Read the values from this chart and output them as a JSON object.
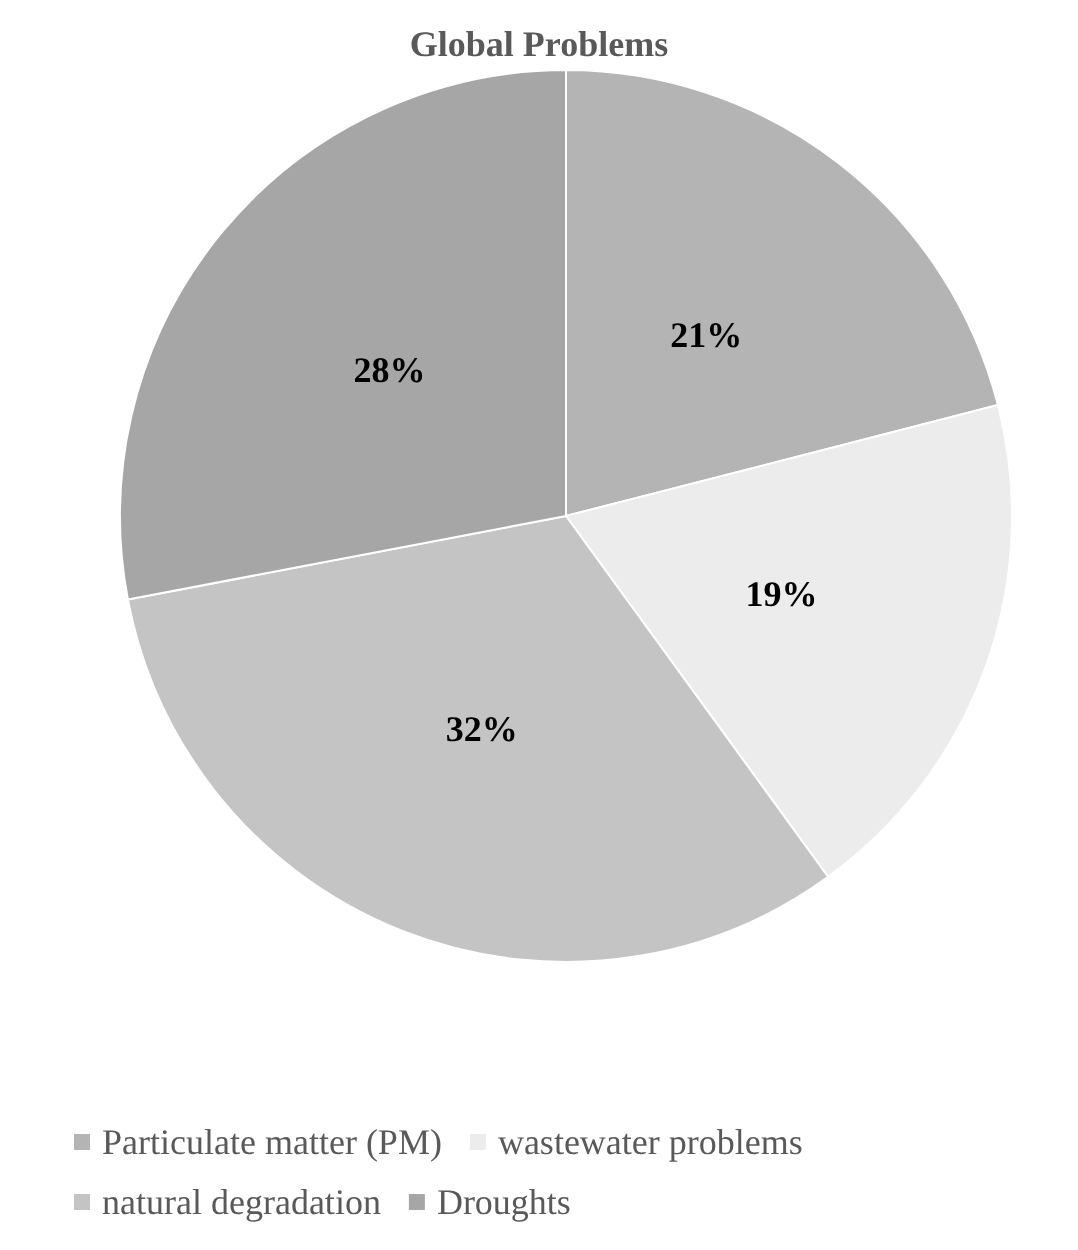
{
  "chart_data": {
    "type": "pie",
    "title": "Global Problems",
    "categories": [
      "Particulate matter (PM)",
      "wastewater problems",
      "natural degradation",
      "Droughts"
    ],
    "values": [
      21,
      19,
      32,
      28
    ],
    "colors": [
      "#b4b4b4",
      "#ececec",
      "#c4c4c4",
      "#a6a6a6"
    ],
    "value_labels": [
      "21%",
      "19%",
      "32%",
      "28%"
    ],
    "legend": "bottom"
  }
}
